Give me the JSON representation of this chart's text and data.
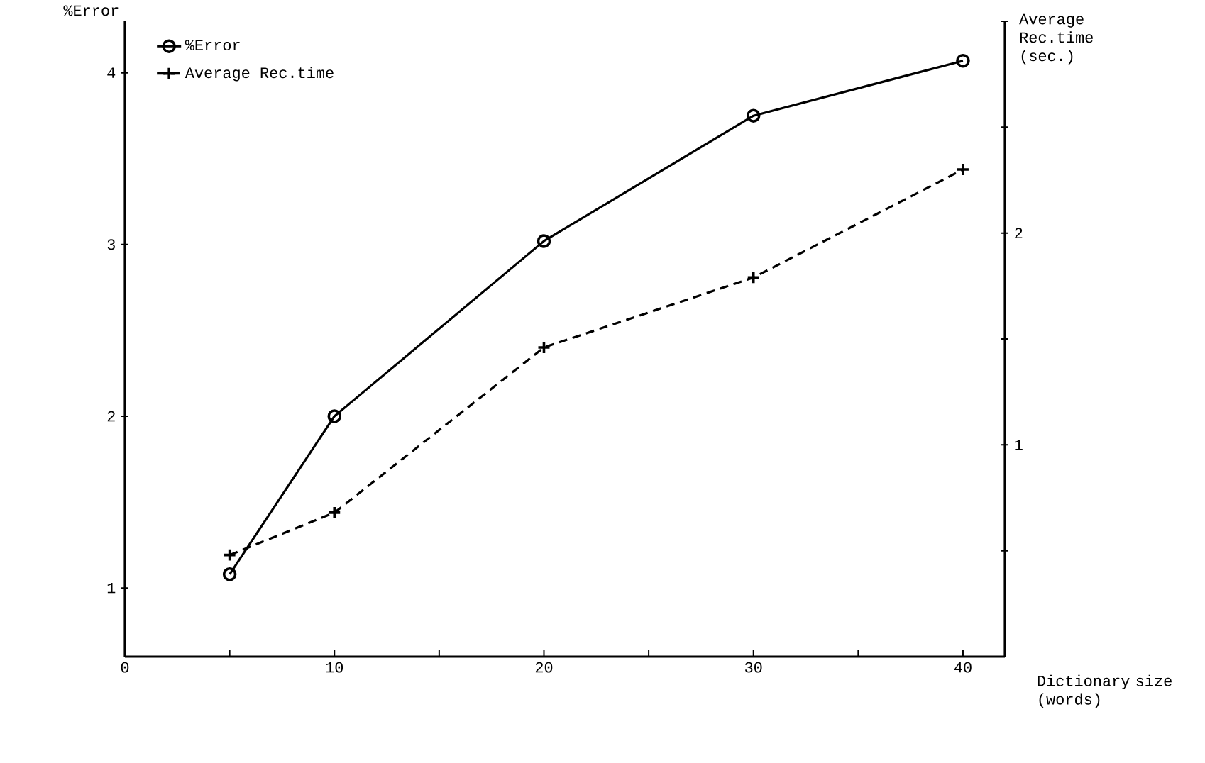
{
  "chart_data": {
    "type": "line",
    "xlabel": "Dictionary size (words)",
    "ylabel": "%Error",
    "y2label": "Average Rec.time (sec.)",
    "x": [
      5,
      10,
      20,
      30,
      40
    ],
    "series": [
      {
        "name": "%Error",
        "color": "#000000",
        "values": [
          1.08,
          2.0,
          3.02,
          3.75,
          4.07
        ],
        "marker": "circle",
        "line_style": "solid"
      },
      {
        "name": "Average Rec.time",
        "color": "#000000",
        "values": [
          0.48,
          0.68,
          1.46,
          1.79,
          2.3
        ],
        "marker": "cross",
        "line_style": "dashed",
        "axis": "y2"
      }
    ],
    "xlim": [
      0,
      42
    ],
    "xticks": [
      0,
      {
        "value": 5,
        "label": null
      },
      10,
      {
        "value": 15,
        "label": null
      },
      20,
      {
        "value": 25,
        "label": null
      },
      30,
      {
        "value": 35,
        "label": null
      },
      40
    ],
    "ylim": [
      0.6,
      4.3
    ],
    "yticks": [
      1,
      2,
      3,
      4
    ],
    "y2lim": [
      0,
      3
    ],
    "y2ticks": [
      {
        "value": 0.5,
        "label": null
      },
      1,
      {
        "value": 1.5,
        "label": null
      },
      2,
      {
        "value": 2.5,
        "label": null
      },
      {
        "value": 3,
        "label": null
      }
    ],
    "legend": "top left"
  }
}
